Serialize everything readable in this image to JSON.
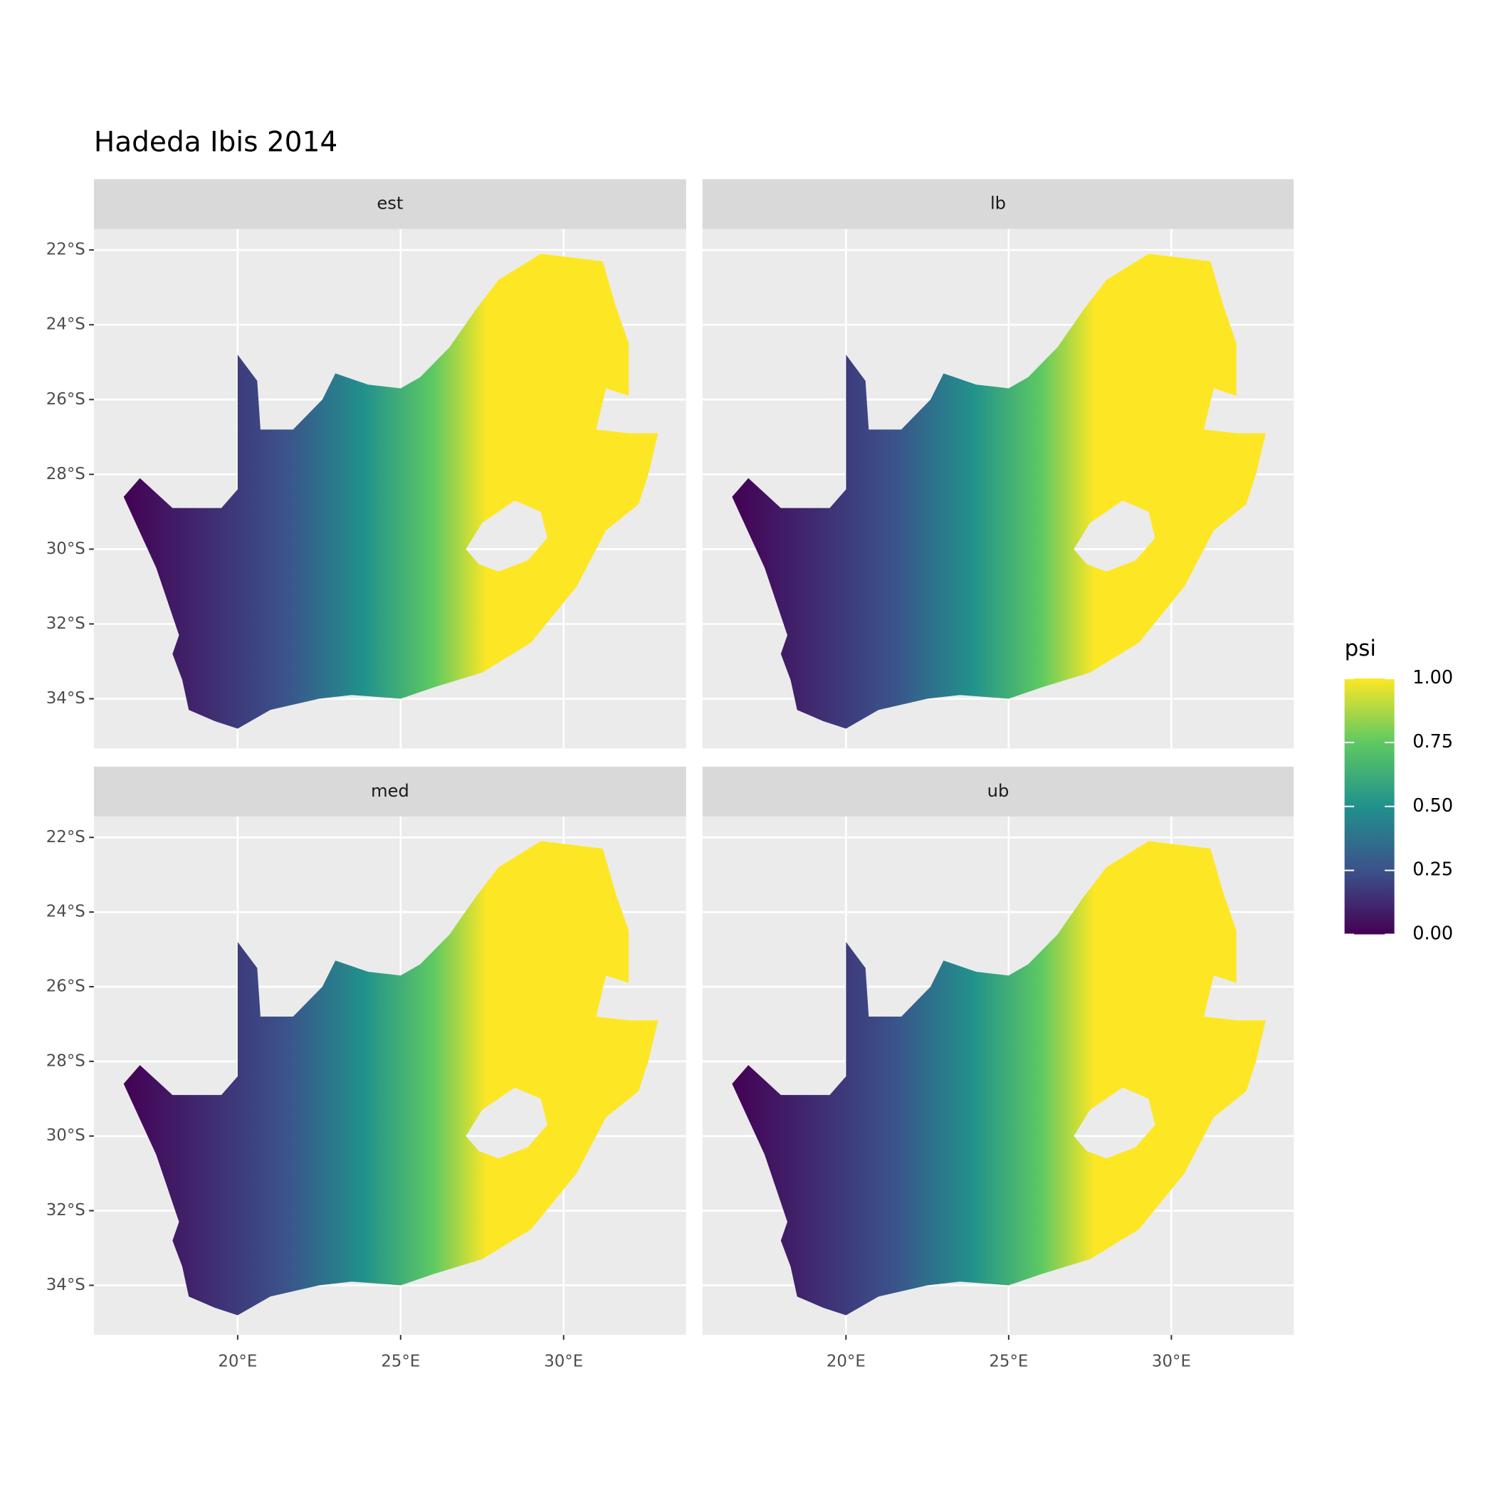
{
  "chart_data": {
    "type": "raster-map",
    "title": "Hadeda Ibis 2014",
    "facets": [
      "est",
      "lb",
      "med",
      "ub"
    ],
    "xlim": [
      15.59,
      33.76
    ],
    "ylim": [
      -35.33,
      -21.44
    ],
    "xticks": [
      {
        "value": 20,
        "label": "20°E"
      },
      {
        "value": 25,
        "label": "25°E"
      },
      {
        "value": 30,
        "label": "30°E"
      }
    ],
    "yticks": [
      {
        "value": -22,
        "label": "22°S"
      },
      {
        "value": -24,
        "label": "24°S"
      },
      {
        "value": -26,
        "label": "26°S"
      },
      {
        "value": -28,
        "label": "28°S"
      },
      {
        "value": -30,
        "label": "30°S"
      },
      {
        "value": -32,
        "label": "32°S"
      },
      {
        "value": -34,
        "label": "34°S"
      }
    ],
    "grid": true,
    "legend": {
      "title": "psi",
      "lim": [
        0,
        1
      ],
      "ticks": [
        {
          "value": 0,
          "label": "0.00"
        },
        {
          "value": 0.25,
          "label": "0.25"
        },
        {
          "value": 0.5,
          "label": "0.50"
        },
        {
          "value": 0.75,
          "label": "0.75"
        },
        {
          "value": 1,
          "label": "1.00"
        }
      ],
      "colors": [
        "#440154",
        "#3b528b",
        "#21918c",
        "#5ec962",
        "#fde725"
      ]
    }
  }
}
